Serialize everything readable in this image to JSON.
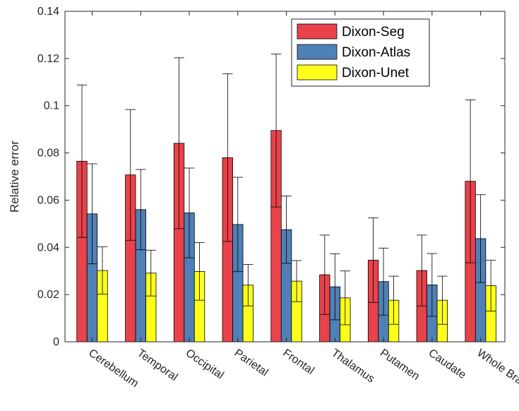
{
  "chart_data": {
    "type": "bar",
    "title": "",
    "xlabel": "",
    "ylabel": "Relative error",
    "ylim": [
      0,
      0.14
    ],
    "yticks": [
      0,
      0.02,
      0.04,
      0.06,
      0.08,
      0.1,
      0.12,
      0.14
    ],
    "ytick_labels": [
      "0",
      "0.02",
      "0.04",
      "0.06",
      "0.08",
      "0.1",
      "0.12",
      "0.14"
    ],
    "grid": false,
    "legend_position": "top-right",
    "categories": [
      "Cerebellum",
      "Temporal",
      "Occipital",
      "Parietal",
      "Frontal",
      "Thalamus",
      "Putamen",
      "Caudate",
      "Whole Brain"
    ],
    "series": [
      {
        "name": "Dixon-Seg",
        "color": "#e8424a",
        "values": [
          0.0765,
          0.0707,
          0.0841,
          0.078,
          0.0895,
          0.0284,
          0.0346,
          0.0302,
          0.068
        ],
        "error": [
          0.0323,
          0.0277,
          0.0362,
          0.0355,
          0.0324,
          0.0168,
          0.0179,
          0.015,
          0.0345
        ]
      },
      {
        "name": "Dixon-Atlas",
        "color": "#4f80b6",
        "values": [
          0.0542,
          0.056,
          0.0546,
          0.0497,
          0.0475,
          0.0233,
          0.0255,
          0.0241,
          0.0437
        ],
        "error": [
          0.0212,
          0.017,
          0.019,
          0.02,
          0.0143,
          0.014,
          0.0142,
          0.0133,
          0.0186
        ]
      },
      {
        "name": "Dixon-Unet",
        "color": "#ffff19",
        "values": [
          0.0302,
          0.0291,
          0.0298,
          0.024,
          0.0257,
          0.0186,
          0.0176,
          0.0176,
          0.0238
        ],
        "error": [
          0.01,
          0.0097,
          0.0122,
          0.0088,
          0.0087,
          0.0114,
          0.0102,
          0.0102,
          0.0108
        ]
      }
    ]
  }
}
